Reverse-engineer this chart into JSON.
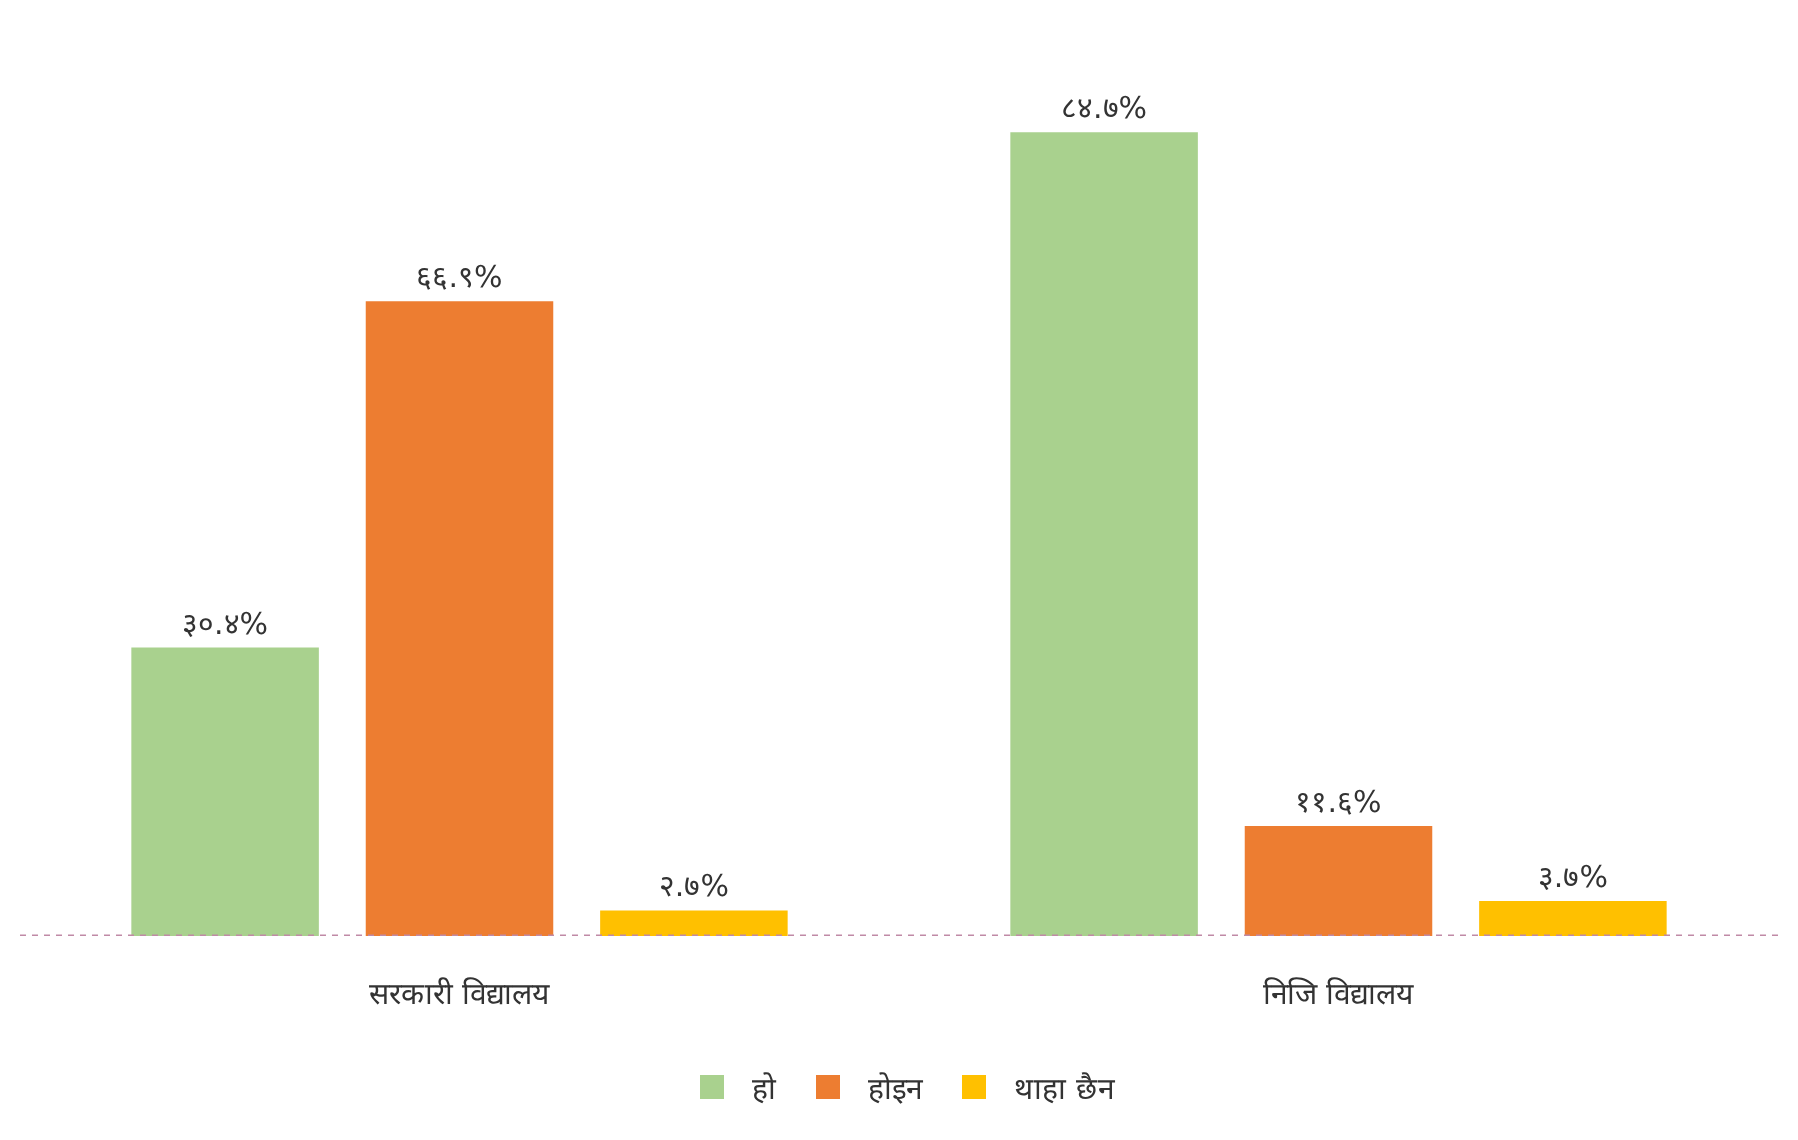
{
  "chart_data": {
    "type": "bar",
    "categories": [
      "सरकारी विद्यालय",
      "निजि विद्यालय"
    ],
    "series": [
      {
        "name": "हो",
        "color": "#a9d18e",
        "values": [
          30.4,
          84.7
        ],
        "value_labels": [
          "३०.४%",
          "८४.७%"
        ]
      },
      {
        "name": "होइन",
        "color": "#ed7d31",
        "values": [
          66.9,
          11.6
        ],
        "value_labels": [
          "६६.९%",
          "११.६%"
        ]
      },
      {
        "name": "थाहा छैन",
        "color": "#ffc000",
        "values": [
          2.7,
          3.7
        ],
        "value_labels": [
          "२.७%",
          "३.७%"
        ]
      }
    ],
    "legend": "bottom"
  }
}
